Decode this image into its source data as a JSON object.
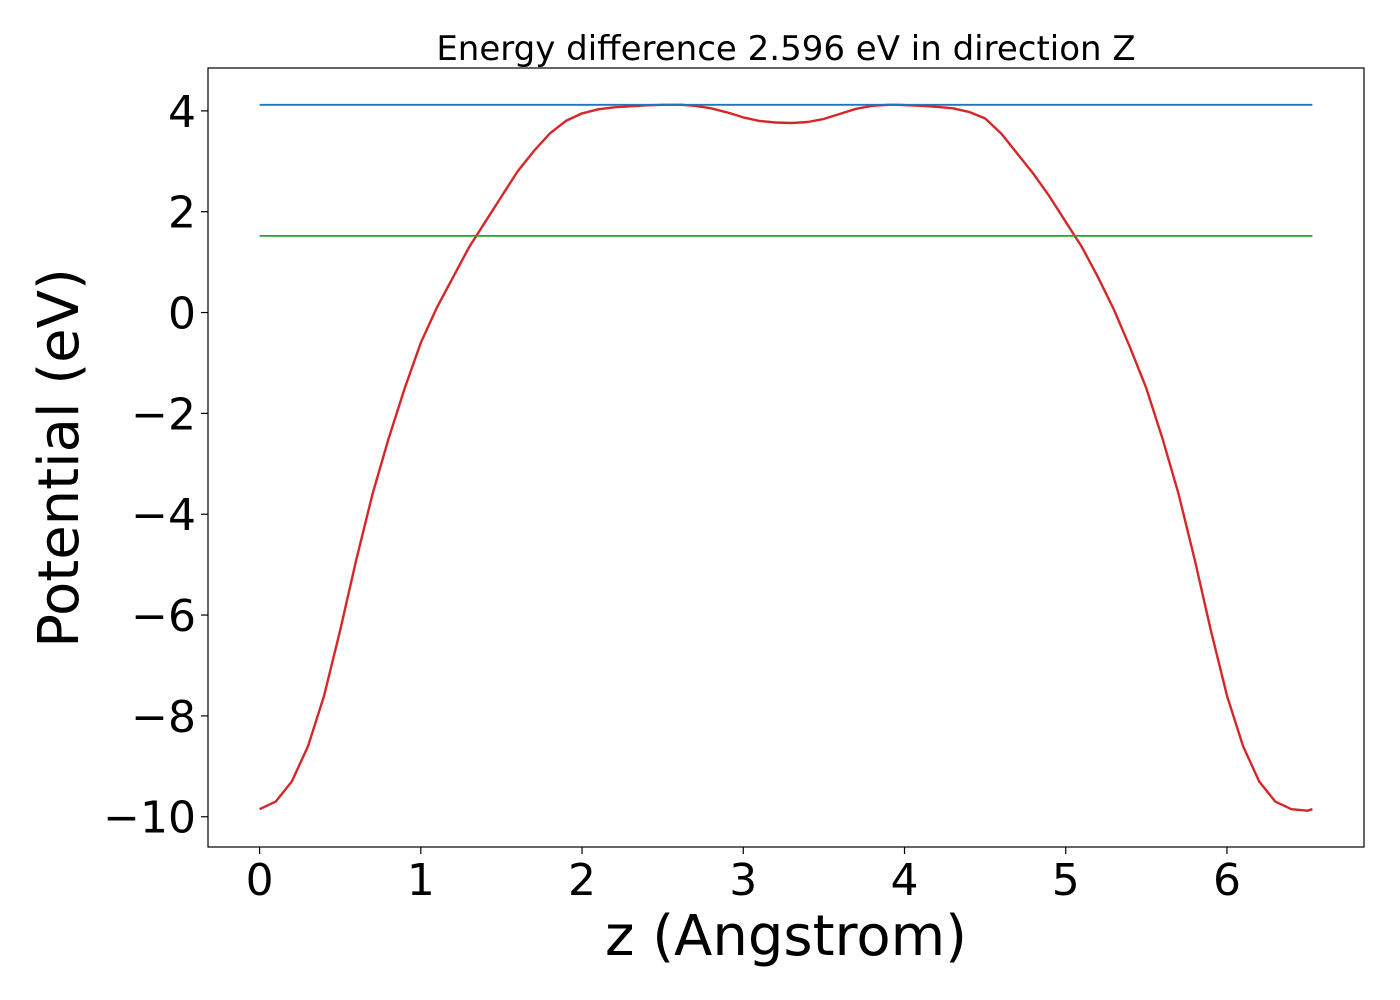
{
  "chart_data": {
    "type": "line",
    "title": "Energy difference 2.596 eV in direction Z",
    "xlabel": "z (Angstrom)",
    "ylabel": "Potential (eV)",
    "xlim": [
      -0.32,
      6.85
    ],
    "ylim": [
      -10.6,
      4.85
    ],
    "xticks": [
      0,
      1,
      2,
      3,
      4,
      5,
      6
    ],
    "yticks": [
      -10,
      -8,
      -6,
      -4,
      -2,
      0,
      2,
      4
    ],
    "xtick_labels": [
      "0",
      "1",
      "2",
      "3",
      "4",
      "5",
      "6"
    ],
    "ytick_labels": [
      "−10",
      "−8",
      "−6",
      "−4",
      "−2",
      "0",
      "2",
      "4"
    ],
    "grid": false,
    "series": [
      {
        "color": "#d62728",
        "x": [
          0.0,
          0.1,
          0.2,
          0.3,
          0.4,
          0.5,
          0.6,
          0.7,
          0.8,
          0.9,
          1.0,
          1.1,
          1.2,
          1.3,
          1.4,
          1.5,
          1.6,
          1.7,
          1.8,
          1.9,
          2.0,
          2.1,
          2.2,
          2.3,
          2.4,
          2.5,
          2.62,
          2.7,
          2.8,
          2.9,
          3.0,
          3.1,
          3.2,
          3.3,
          3.4,
          3.5,
          3.6,
          3.7,
          3.8,
          3.9,
          3.96,
          4.1,
          4.2,
          4.3,
          4.4,
          4.5,
          4.6,
          4.7,
          4.8,
          4.9,
          5.0,
          5.1,
          5.2,
          5.3,
          5.4,
          5.5,
          5.6,
          5.7,
          5.8,
          5.9,
          6.0,
          6.1,
          6.2,
          6.3,
          6.4,
          6.5,
          6.53
        ],
        "y": [
          -9.85,
          -9.7,
          -9.3,
          -8.6,
          -7.6,
          -6.3,
          -4.9,
          -3.6,
          -2.5,
          -1.5,
          -0.6,
          0.1,
          0.7,
          1.3,
          1.8,
          2.3,
          2.8,
          3.2,
          3.55,
          3.8,
          3.95,
          4.03,
          4.07,
          4.09,
          4.11,
          4.12,
          4.12,
          4.1,
          4.05,
          3.97,
          3.87,
          3.8,
          3.77,
          3.76,
          3.78,
          3.84,
          3.94,
          4.04,
          4.1,
          4.12,
          4.12,
          4.1,
          4.08,
          4.05,
          3.98,
          3.85,
          3.55,
          3.15,
          2.75,
          2.3,
          1.8,
          1.3,
          0.7,
          0.05,
          -0.7,
          -1.5,
          -2.5,
          -3.6,
          -4.9,
          -6.3,
          -7.6,
          -8.6,
          -9.3,
          -9.7,
          -9.85,
          -9.88,
          -9.85
        ]
      },
      {
        "color": "#1f77b4",
        "x": [
          0.0,
          6.53
        ],
        "y": [
          4.12,
          4.12
        ]
      },
      {
        "color": "#2ca02c",
        "x": [
          0.0,
          6.53
        ],
        "y": [
          1.52,
          1.52
        ]
      }
    ]
  }
}
